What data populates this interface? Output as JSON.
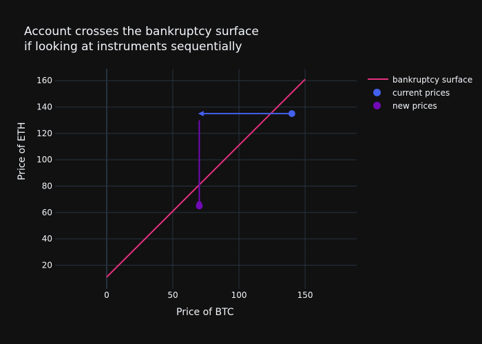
{
  "chart_data": {
    "type": "line",
    "title": "Account crosses the bankruptcy surface\nif looking at instruments sequentially",
    "title_lines": [
      "Account crosses the bankruptcy surface",
      "if looking at instruments sequentially"
    ],
    "xlabel": "Price of BTC",
    "ylabel": "Price of ETH",
    "xlim": [
      -39,
      189
    ],
    "ylim": [
      2,
      169
    ],
    "x_ticks": [
      0,
      50,
      100,
      150
    ],
    "y_ticks": [
      20,
      40,
      60,
      80,
      100,
      120,
      140,
      160
    ],
    "grid": true,
    "legend_position": "right-top",
    "series": [
      {
        "name": "bankruptcy surface",
        "mode": "line",
        "color": "#e8307f",
        "x": [
          0,
          150
        ],
        "y": [
          11,
          161
        ]
      },
      {
        "name": "current prices",
        "mode": "marker",
        "color": "#4361ee",
        "x": [
          140
        ],
        "y": [
          135
        ]
      },
      {
        "name": "new prices",
        "mode": "marker",
        "color": "#7209b7",
        "x": [
          70
        ],
        "y": [
          65
        ]
      }
    ],
    "annotations": [
      {
        "type": "arrow",
        "color": "#4361ee",
        "from": [
          140,
          135
        ],
        "to": [
          70,
          135
        ]
      },
      {
        "type": "arrow",
        "color": "#7209b7",
        "from": [
          70,
          130
        ],
        "to": [
          70,
          65
        ]
      }
    ]
  },
  "legend": {
    "items": [
      {
        "label": "bankruptcy surface",
        "color": "#e8307f",
        "kind": "line"
      },
      {
        "label": "current prices",
        "color": "#4361ee",
        "kind": "marker"
      },
      {
        "label": "new prices",
        "color": "#7209b7",
        "kind": "marker"
      }
    ]
  },
  "colors": {
    "background": "#111111",
    "grid": "#283442",
    "text": "#f2f5fa"
  }
}
